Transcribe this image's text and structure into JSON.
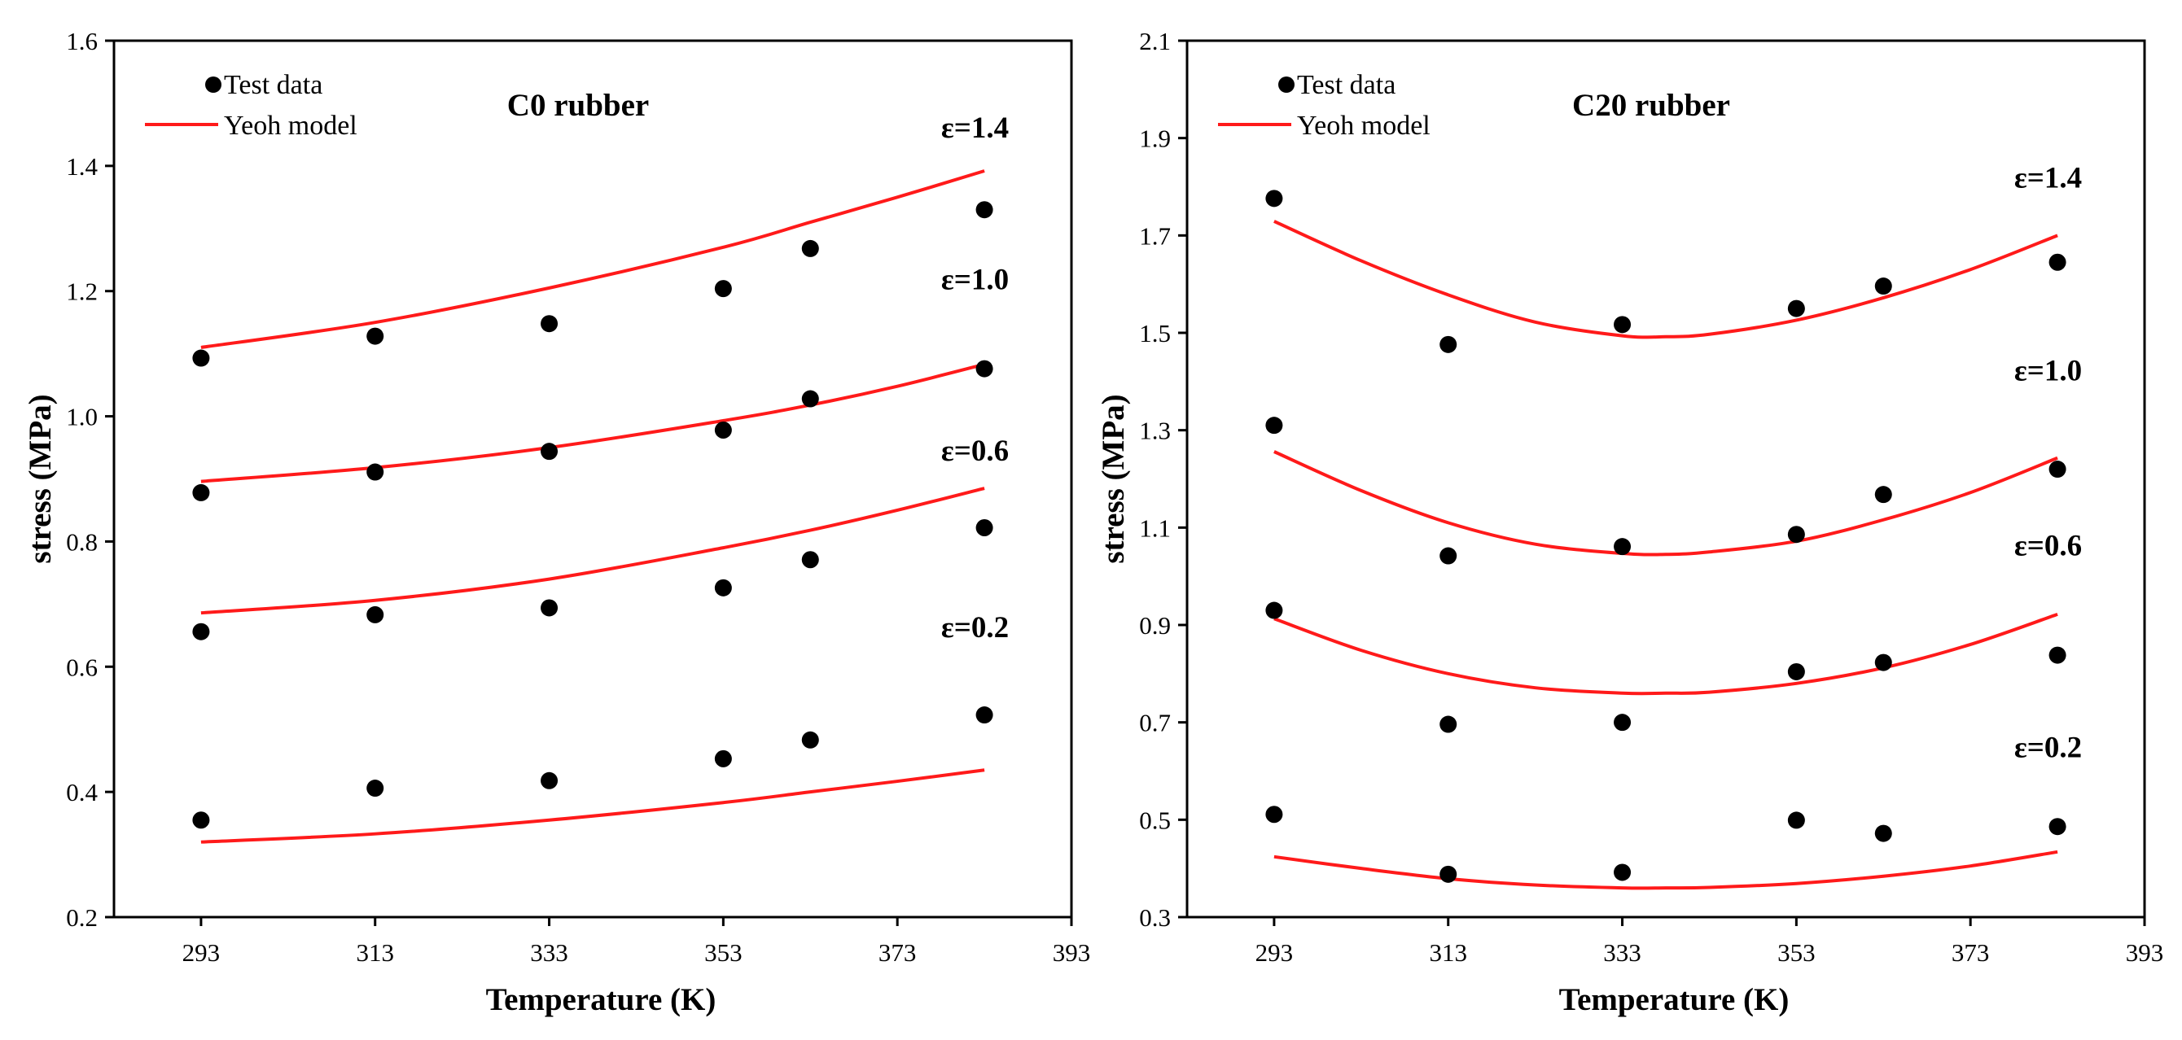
{
  "chart_data": [
    {
      "type": "line+scatter",
      "title": "C0 rubber",
      "xlabel": "Temperature (K)",
      "ylabel": "stress (MPa)",
      "xlim": [
        283,
        393
      ],
      "ylim": [
        0.2,
        1.6
      ],
      "xticks": [
        "293",
        "313",
        "333",
        "353",
        "373",
        "393"
      ],
      "yticks": [
        "0.2",
        "0.4",
        "0.6",
        "0.8",
        "1.0",
        "1.2",
        "1.4",
        "1.6"
      ],
      "legend": {
        "placement": "top-left",
        "scatter_label": "Test data",
        "line_label": "Yeoh model"
      },
      "colors": {
        "model": "#ff1a1a",
        "data": "#000000"
      },
      "series": [
        {
          "name": "ε=1.4",
          "test_x": [
            293,
            313,
            333,
            353,
            363,
            383
          ],
          "test_y": [
            1.093,
            1.128,
            1.148,
            1.204,
            1.268,
            1.33
          ],
          "model_x": [
            293,
            313,
            333,
            353,
            363,
            373,
            383
          ],
          "model_y": [
            1.11,
            1.15,
            1.205,
            1.27,
            1.31,
            1.35,
            1.392
          ]
        },
        {
          "name": "ε=1.0",
          "test_x": [
            293,
            313,
            333,
            353,
            363,
            383
          ],
          "test_y": [
            0.878,
            0.911,
            0.944,
            0.978,
            1.028,
            1.076
          ],
          "model_x": [
            293,
            313,
            333,
            353,
            363,
            373,
            383
          ],
          "model_y": [
            0.896,
            0.918,
            0.95,
            0.993,
            1.018,
            1.048,
            1.083
          ]
        },
        {
          "name": "ε=0.6",
          "test_x": [
            293,
            313,
            333,
            353,
            363,
            383
          ],
          "test_y": [
            0.656,
            0.683,
            0.694,
            0.726,
            0.771,
            0.822
          ],
          "model_x": [
            293,
            313,
            333,
            353,
            363,
            373,
            383
          ],
          "model_y": [
            0.686,
            0.706,
            0.74,
            0.79,
            0.818,
            0.85,
            0.885
          ]
        },
        {
          "name": "ε=0.2",
          "test_x": [
            293,
            313,
            333,
            353,
            363,
            383
          ],
          "test_y": [
            0.355,
            0.406,
            0.418,
            0.453,
            0.483,
            0.523
          ],
          "model_x": [
            293,
            313,
            333,
            353,
            363,
            373,
            383
          ],
          "model_y": [
            0.32,
            0.333,
            0.355,
            0.383,
            0.4,
            0.417,
            0.435
          ]
        }
      ],
      "annotations": [
        {
          "text": "ε=1.4",
          "x": 383,
          "y": 1.462
        },
        {
          "text": "ε=1.0",
          "x": 383,
          "y": 1.22
        },
        {
          "text": "ε=0.6",
          "x": 383,
          "y": 0.946
        },
        {
          "text": "ε=0.2",
          "x": 383,
          "y": 0.664
        }
      ]
    },
    {
      "type": "line+scatter",
      "title": "C20 rubber",
      "xlabel": "Temperature (K)",
      "ylabel": "stress (MPa)",
      "xlim": [
        283,
        393
      ],
      "ylim": [
        0.3,
        2.1
      ],
      "xticks": [
        "293",
        "313",
        "333",
        "353",
        "373",
        "393"
      ],
      "yticks": [
        "0.3",
        "0.5",
        "0.7",
        "0.9",
        "1.1",
        "1.3",
        "1.5",
        "1.7",
        "1.9",
        "2.1"
      ],
      "legend": {
        "placement": "top-left",
        "scatter_label": "Test data",
        "line_label": "Yeoh model"
      },
      "colors": {
        "model": "#ff1a1a",
        "data": "#000000"
      },
      "series": [
        {
          "name": "ε=1.4",
          "test_x": [
            293,
            313,
            333,
            353,
            363,
            383
          ],
          "test_y": [
            1.776,
            1.476,
            1.517,
            1.55,
            1.596,
            1.645
          ],
          "model_x": [
            293,
            303,
            313,
            323,
            333,
            338,
            343,
            353,
            363,
            373,
            383
          ],
          "model_y": [
            1.729,
            1.648,
            1.578,
            1.522,
            1.494,
            1.492,
            1.497,
            1.526,
            1.572,
            1.63,
            1.7
          ]
        },
        {
          "name": "ε=1.0",
          "test_x": [
            293,
            313,
            333,
            353,
            363,
            383
          ],
          "test_y": [
            1.31,
            1.042,
            1.061,
            1.086,
            1.168,
            1.22
          ],
          "model_x": [
            293,
            303,
            313,
            323,
            333,
            338,
            343,
            353,
            363,
            373,
            383
          ],
          "model_y": [
            1.256,
            1.176,
            1.11,
            1.066,
            1.047,
            1.045,
            1.05,
            1.072,
            1.116,
            1.172,
            1.243
          ]
        },
        {
          "name": "ε=0.6",
          "test_x": [
            293,
            313,
            333,
            353,
            363,
            383
          ],
          "test_y": [
            0.93,
            0.696,
            0.7,
            0.804,
            0.823,
            0.838
          ],
          "model_x": [
            293,
            303,
            313,
            323,
            333,
            338,
            343,
            353,
            363,
            373,
            383
          ],
          "model_y": [
            0.913,
            0.848,
            0.8,
            0.771,
            0.76,
            0.76,
            0.762,
            0.78,
            0.812,
            0.86,
            0.922
          ]
        },
        {
          "name": "ε=0.2",
          "test_x": [
            293,
            313,
            333,
            353,
            363,
            383
          ],
          "test_y": [
            0.511,
            0.388,
            0.392,
            0.499,
            0.472,
            0.486
          ],
          "model_x": [
            293,
            303,
            313,
            323,
            333,
            338,
            343,
            353,
            363,
            373,
            383
          ],
          "model_y": [
            0.424,
            0.4,
            0.379,
            0.366,
            0.36,
            0.36,
            0.361,
            0.369,
            0.384,
            0.405,
            0.434
          ]
        }
      ],
      "annotations": [
        {
          "text": "ε=1.4",
          "x": 383,
          "y": 1.82
        },
        {
          "text": "ε=1.0",
          "x": 383,
          "y": 1.424
        },
        {
          "text": "ε=0.6",
          "x": 383,
          "y": 1.065
        },
        {
          "text": "ε=0.2",
          "x": 383,
          "y": 0.65
        }
      ]
    }
  ]
}
